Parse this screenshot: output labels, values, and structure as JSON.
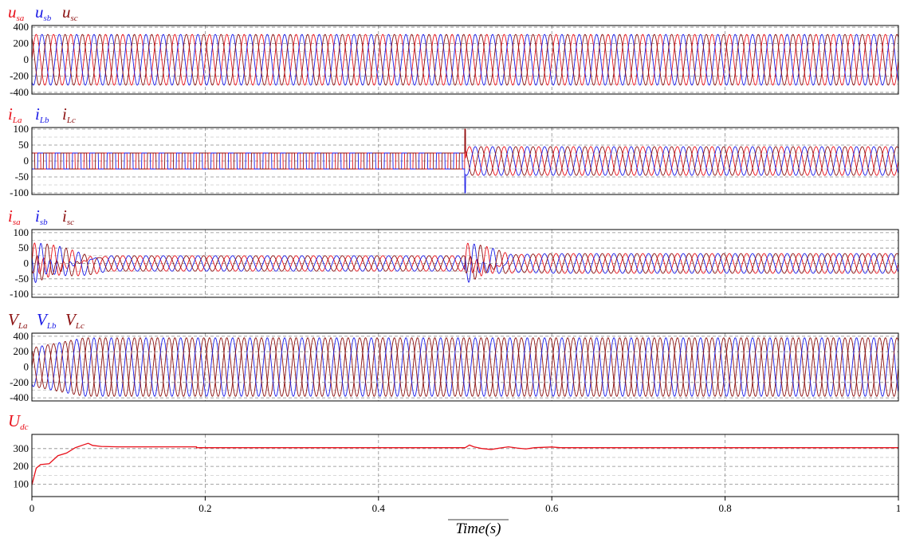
{
  "chart_data": [
    {
      "type": "line",
      "legend": [
        {
          "base": "u",
          "sub": "sa",
          "color": "#e8101a"
        },
        {
          "base": "u",
          "sub": "sb",
          "color": "#1a1ae6"
        },
        {
          "base": "u",
          "sub": "sc",
          "color": "#8b1010"
        }
      ],
      "x_range": [
        0,
        1
      ],
      "ylim": [
        -420,
        420
      ],
      "yticks": [
        -400,
        -200,
        0,
        200,
        400
      ],
      "grid": true,
      "series_spec": {
        "frequency_hz": 50,
        "amplitude": [
          [
            0,
            311
          ],
          [
            1,
            311
          ]
        ],
        "phase_deg": [
          0,
          -120,
          120
        ]
      }
    },
    {
      "type": "line",
      "legend": [
        {
          "base": "i",
          "sub": "La",
          "color": "#e8101a"
        },
        {
          "base": "i",
          "sub": "Lb",
          "color": "#1a1ae6"
        },
        {
          "base": "i",
          "sub": "Lc",
          "color": "#8b1010"
        }
      ],
      "x_range": [
        0,
        1
      ],
      "ylim": [
        -105,
        105
      ],
      "yticks": [
        -100,
        -50,
        0,
        50,
        100
      ],
      "grid": true,
      "series_spec": {
        "frequency_hz": 50,
        "waveform": "square-then-sine",
        "amplitude": [
          [
            0,
            25
          ],
          [
            0.5,
            25
          ],
          [
            0.5,
            45
          ],
          [
            1,
            45
          ]
        ],
        "phase_deg": [
          0,
          -120,
          120
        ],
        "step_time": 0.5,
        "step_spike": 100
      }
    },
    {
      "type": "line",
      "legend": [
        {
          "base": "i",
          "sub": "sa",
          "color": "#e8101a"
        },
        {
          "base": "i",
          "sub": "sb",
          "color": "#1a1ae6"
        },
        {
          "base": "i",
          "sub": "sc",
          "color": "#8b1010"
        }
      ],
      "x_range": [
        0,
        1
      ],
      "ylim": [
        -110,
        110
      ],
      "yticks": [
        -100,
        -50,
        0,
        50,
        100
      ],
      "grid": true,
      "series_spec": {
        "frequency_hz": 50,
        "amplitude": [
          [
            0,
            25
          ],
          [
            0.1,
            25
          ],
          [
            0.5,
            25
          ],
          [
            0.6,
            32
          ],
          [
            1,
            32
          ]
        ],
        "phase_deg": [
          0,
          -120,
          120
        ],
        "transients": [
          [
            0,
            0.09,
            80
          ],
          [
            0.5,
            0.56,
            80
          ]
        ]
      }
    },
    {
      "type": "line",
      "legend": [
        {
          "base": "V",
          "sub": "La",
          "color": "#8b1010"
        },
        {
          "base": "V",
          "sub": "Lb",
          "color": "#1a1ae6"
        },
        {
          "base": "V",
          "sub": "Lc",
          "color": "#8b1010"
        }
      ],
      "x_range": [
        0,
        1
      ],
      "ylim": [
        -440,
        440
      ],
      "yticks": [
        -400,
        -200,
        0,
        200,
        400
      ],
      "grid": true,
      "series_spec": {
        "frequency_hz": 50,
        "amplitude": [
          [
            0,
            250
          ],
          [
            0.06,
            380
          ],
          [
            1,
            380
          ]
        ],
        "phase_deg": [
          0,
          -120,
          120
        ]
      }
    },
    {
      "type": "line",
      "legend": [
        {
          "base": "U",
          "sub": "dc",
          "color": "#e8101a"
        }
      ],
      "x_range": [
        0,
        1
      ],
      "ylim": [
        30,
        380
      ],
      "yticks": [
        100,
        200,
        300
      ],
      "grid": true,
      "series": [
        {
          "name": "U_dc",
          "color": "#e8101a",
          "x": [
            0,
            0.005,
            0.01,
            0.02,
            0.03,
            0.04,
            0.05,
            0.06,
            0.065,
            0.07,
            0.08,
            0.1,
            0.19,
            0.19,
            0.5,
            0.505,
            0.51,
            0.52,
            0.53,
            0.54,
            0.55,
            0.56,
            0.57,
            0.58,
            0.6,
            0.61,
            1
          ],
          "y": [
            95,
            190,
            210,
            215,
            260,
            275,
            305,
            322,
            330,
            318,
            312,
            310,
            310,
            305,
            305,
            320,
            310,
            300,
            295,
            303,
            310,
            303,
            298,
            305,
            309,
            305,
            305
          ]
        }
      ]
    }
  ],
  "xaxis": {
    "ticks": [
      0,
      0.2,
      0.4,
      0.6,
      0.8,
      1
    ],
    "tick_labels": [
      "0",
      "0.2",
      "0.4",
      "0.6",
      "0.8",
      "1"
    ],
    "label": "Time(s)"
  }
}
